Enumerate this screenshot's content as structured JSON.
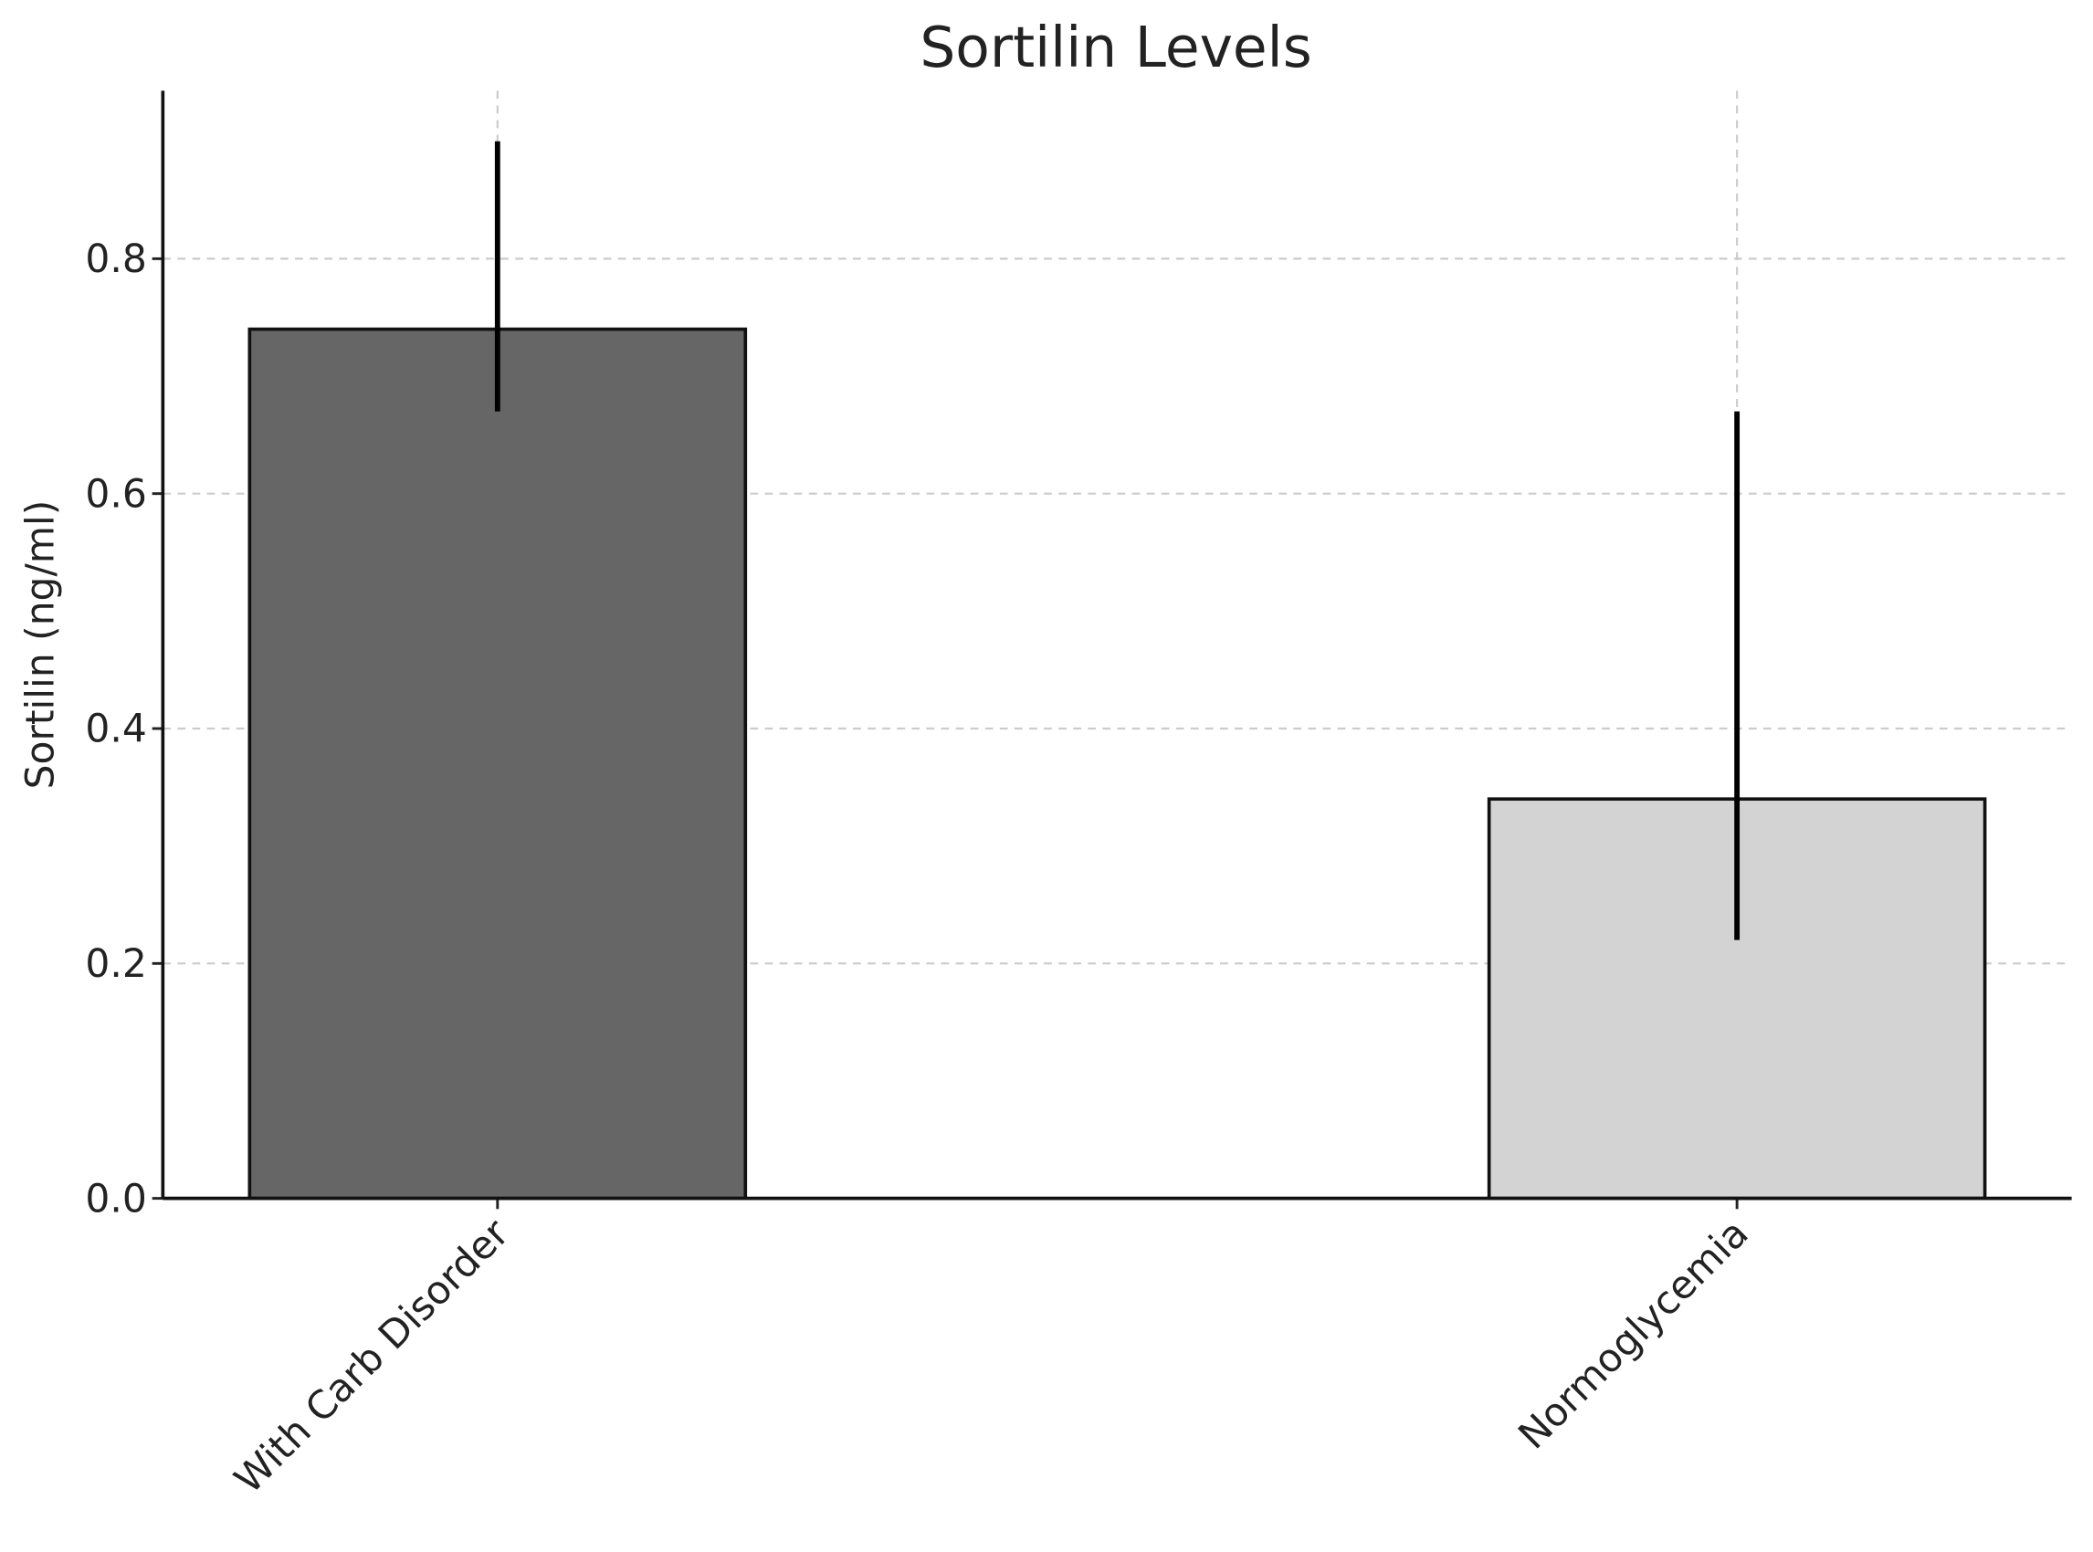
{
  "chart_data": {
    "type": "bar",
    "title": "Sortilin Levels",
    "y_label": "Sortilin (ng/ml)",
    "categories": [
      "With Carb Disorder",
      "Normoglycemia"
    ],
    "values": [
      0.74,
      0.34
    ],
    "error_low": [
      0.67,
      0.22
    ],
    "error_high": [
      0.9,
      0.67
    ],
    "colors": [
      "#666666",
      "#d3d3d3"
    ],
    "ylim": [
      0,
      0.943
    ],
    "yticks": [
      {
        "value": 0,
        "label": "0.0"
      },
      0.2,
      0.4,
      0.6,
      0.8
    ],
    "grid": true
  }
}
